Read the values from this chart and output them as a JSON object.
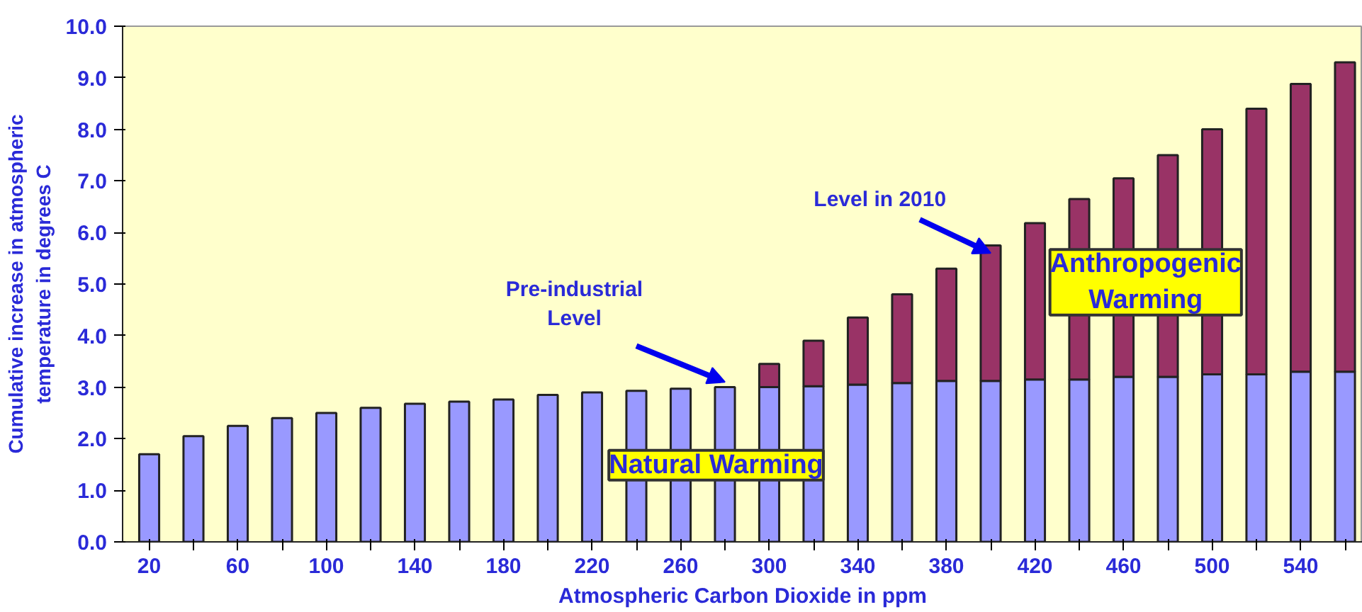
{
  "chart_data": {
    "type": "bar",
    "stacked": true,
    "xlabel": "Atmospheric Carbon Dioxide in ppm",
    "ylabel": "Cumulative increase in atmospheric temperature in degrees C",
    "categories": [
      "20",
      null,
      "60",
      null,
      "100",
      null,
      "140",
      null,
      "180",
      null,
      "220",
      null,
      "260",
      null,
      "300",
      null,
      "340",
      null,
      "380",
      null,
      "420",
      null,
      "460",
      null,
      "500",
      null,
      "540",
      null
    ],
    "series": [
      {
        "name": "Natural Warming",
        "color": "#9999ff",
        "values": [
          1.7,
          2.05,
          2.25,
          2.4,
          2.5,
          2.6,
          2.68,
          2.72,
          2.76,
          2.85,
          2.9,
          2.93,
          2.97,
          3.0,
          3.0,
          3.02,
          3.05,
          3.08,
          3.12,
          3.12,
          3.15,
          3.15,
          3.2,
          3.2,
          3.25,
          3.25,
          3.3,
          3.3
        ]
      },
      {
        "name": "Anthropogenic Warming",
        "color": "#993366",
        "values": [
          null,
          null,
          null,
          null,
          null,
          null,
          null,
          null,
          null,
          null,
          null,
          null,
          null,
          null,
          0.45,
          0.88,
          1.3,
          1.72,
          2.18,
          2.63,
          3.03,
          3.5,
          3.85,
          4.3,
          4.75,
          5.15,
          5.58,
          6.0
        ]
      }
    ],
    "ylim": [
      0,
      10
    ],
    "yticks": [
      {
        "value": 0,
        "label": "0.0"
      },
      {
        "value": 1,
        "label": "1.0"
      },
      {
        "value": 2,
        "label": "2.0"
      },
      {
        "value": 3,
        "label": "3.0"
      },
      {
        "value": 4,
        "label": "4.0"
      },
      {
        "value": 5,
        "label": "5.0"
      },
      {
        "value": 6,
        "label": "6.0"
      },
      {
        "value": 7,
        "label": "7.0"
      },
      {
        "value": 8,
        "label": "8.0"
      },
      {
        "value": 9,
        "label": "9.0"
      },
      {
        "value": 10,
        "label": "10.0"
      }
    ],
    "annotations": [
      "Pre-industrial Level",
      "Level in 2010"
    ],
    "grid": false
  }
}
